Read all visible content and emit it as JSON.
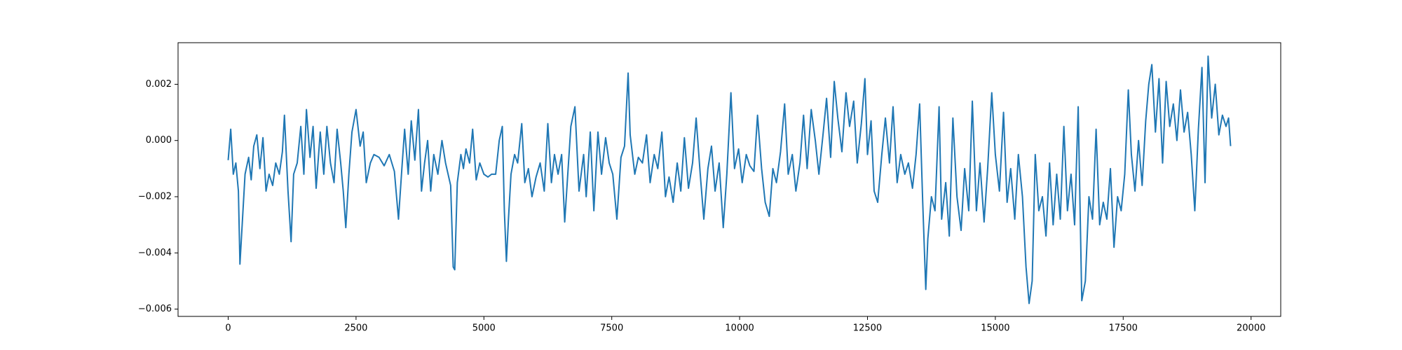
{
  "chart_data": {
    "type": "line",
    "x": [
      0,
      50,
      100,
      150,
      200,
      230,
      280,
      330,
      400,
      450,
      500,
      560,
      620,
      680,
      740,
      800,
      870,
      930,
      1000,
      1060,
      1100,
      1170,
      1230,
      1280,
      1350,
      1420,
      1480,
      1530,
      1600,
      1660,
      1720,
      1800,
      1870,
      1930,
      2000,
      2070,
      2130,
      2200,
      2250,
      2300,
      2360,
      2420,
      2500,
      2580,
      2640,
      2700,
      2780,
      2850,
      2950,
      3050,
      3150,
      3250,
      3330,
      3400,
      3450,
      3520,
      3580,
      3650,
      3720,
      3780,
      3840,
      3900,
      3960,
      4020,
      4100,
      4180,
      4250,
      4350,
      4400,
      4430,
      4480,
      4550,
      4600,
      4650,
      4720,
      4780,
      4850,
      4920,
      5000,
      5080,
      5150,
      5230,
      5300,
      5360,
      5400,
      5440,
      5480,
      5530,
      5600,
      5660,
      5740,
      5800,
      5870,
      5940,
      6020,
      6100,
      6180,
      6250,
      6320,
      6380,
      6450,
      6520,
      6580,
      6700,
      6780,
      6860,
      6950,
      7000,
      7080,
      7150,
      7230,
      7300,
      7380,
      7450,
      7520,
      7600,
      7680,
      7750,
      7820,
      7860,
      7950,
      8020,
      8100,
      8180,
      8250,
      8330,
      8400,
      8480,
      8550,
      8620,
      8700,
      8780,
      8850,
      8920,
      9000,
      9080,
      9150,
      9230,
      9300,
      9380,
      9450,
      9520,
      9600,
      9680,
      9750,
      9830,
      9900,
      9980,
      10050,
      10130,
      10200,
      10280,
      10350,
      10430,
      10500,
      10580,
      10650,
      10720,
      10800,
      10880,
      10950,
      11030,
      11100,
      11180,
      11250,
      11320,
      11400,
      11480,
      11550,
      11630,
      11700,
      11780,
      11850,
      11920,
      12000,
      12080,
      12150,
      12230,
      12300,
      12380,
      12450,
      12500,
      12570,
      12630,
      12700,
      12780,
      12850,
      12930,
      13000,
      13080,
      13150,
      13230,
      13300,
      13380,
      13450,
      13520,
      13580,
      13640,
      13680,
      13750,
      13820,
      13900,
      13950,
      14030,
      14100,
      14170,
      14250,
      14330,
      14400,
      14480,
      14550,
      14630,
      14700,
      14780,
      14850,
      14930,
      15000,
      15080,
      15160,
      15230,
      15300,
      15380,
      15450,
      15530,
      15600,
      15660,
      15720,
      15780,
      15850,
      15920,
      15990,
      16060,
      16130,
      16200,
      16270,
      16340,
      16410,
      16480,
      16550,
      16620,
      16690,
      16760,
      16830,
      16900,
      16970,
      17040,
      17110,
      17180,
      17250,
      17320,
      17390,
      17460,
      17530,
      17600,
      17660,
      17730,
      17800,
      17870,
      17940,
      18000,
      18060,
      18130,
      18200,
      18270,
      18340,
      18410,
      18480,
      18550,
      18620,
      18690,
      18760,
      18830,
      18900,
      18970,
      19040,
      19100,
      19160,
      19230,
      19300,
      19370,
      19440,
      19510,
      19560,
      19600
    ],
    "values": [
      -0.0007,
      0.0004,
      -0.0012,
      -0.0008,
      -0.0018,
      -0.0044,
      -0.0028,
      -0.0012,
      -0.0006,
      -0.0014,
      -0.0002,
      0.0002,
      -0.001,
      0.0001,
      -0.0018,
      -0.0012,
      -0.0016,
      -0.0008,
      -0.0012,
      -0.0004,
      0.0009,
      -0.0018,
      -0.0036,
      -0.0012,
      -0.0008,
      0.0005,
      -0.0012,
      0.0011,
      -0.0006,
      0.0005,
      -0.0017,
      0.0003,
      -0.0012,
      0.0005,
      -0.0008,
      -0.0015,
      0.0004,
      -0.0008,
      -0.0018,
      -0.0031,
      -0.0012,
      0.0003,
      0.0011,
      -0.0002,
      0.0003,
      -0.0015,
      -0.0008,
      -0.0005,
      -0.0006,
      -0.0009,
      -0.0005,
      -0.0011,
      -0.0028,
      -0.0009,
      0.0004,
      -0.0012,
      0.0007,
      -0.0007,
      0.0011,
      -0.0018,
      -0.0008,
      0.0,
      -0.0018,
      -0.0005,
      -0.0012,
      0.0,
      -0.0008,
      -0.0016,
      -0.0045,
      -0.0046,
      -0.0015,
      -0.0005,
      -0.001,
      -0.0003,
      -0.0008,
      0.0004,
      -0.0014,
      -0.0008,
      -0.0012,
      -0.0013,
      -0.0012,
      -0.0012,
      0.0,
      0.0005,
      -0.0025,
      -0.0043,
      -0.0028,
      -0.0012,
      -0.0005,
      -0.0008,
      0.0006,
      -0.0015,
      -0.001,
      -0.002,
      -0.0013,
      -0.0008,
      -0.0018,
      0.0006,
      -0.0015,
      -0.0005,
      -0.0012,
      -0.0005,
      -0.0029,
      0.0005,
      0.0012,
      -0.0018,
      -0.0005,
      -0.002,
      0.0003,
      -0.0025,
      0.0003,
      -0.0012,
      0.0001,
      -0.0008,
      -0.0012,
      -0.0028,
      -0.0006,
      -0.0002,
      0.0024,
      0.0002,
      -0.0012,
      -0.0006,
      -0.0008,
      0.0002,
      -0.0015,
      -0.0005,
      -0.001,
      0.0003,
      -0.002,
      -0.0013,
      -0.0022,
      -0.0008,
      -0.0018,
      0.0001,
      -0.0017,
      -0.0008,
      0.0008,
      -0.0012,
      -0.0028,
      -0.001,
      -0.0002,
      -0.0018,
      -0.0008,
      -0.0031,
      -0.0012,
      0.0017,
      -0.001,
      -0.0003,
      -0.0015,
      -0.0005,
      -0.0009,
      -0.0011,
      0.0009,
      -0.001,
      -0.0022,
      -0.0027,
      -0.001,
      -0.0015,
      -0.0004,
      0.0013,
      -0.0012,
      -0.0005,
      -0.0018,
      -0.0008,
      0.0009,
      -0.001,
      0.0011,
      0.0,
      -0.0012,
      0.0002,
      0.0015,
      -0.0006,
      0.0021,
      0.0008,
      -0.0004,
      0.0017,
      0.0005,
      0.0014,
      -0.0008,
      0.0006,
      0.0022,
      -0.0005,
      0.0007,
      -0.0018,
      -0.0022,
      -0.0005,
      0.0008,
      -0.0008,
      0.0012,
      -0.0015,
      -0.0005,
      -0.0012,
      -0.0008,
      -0.0017,
      -0.0005,
      0.0013,
      -0.0022,
      -0.0053,
      -0.0035,
      -0.002,
      -0.0025,
      0.0012,
      -0.0028,
      -0.0015,
      -0.0034,
      0.0008,
      -0.002,
      -0.0032,
      -0.001,
      -0.0025,
      0.0014,
      -0.0025,
      -0.0008,
      -0.0029,
      -0.001,
      0.0017,
      -0.0005,
      -0.0018,
      0.001,
      -0.0022,
      -0.001,
      -0.0028,
      -0.0005,
      -0.002,
      -0.0045,
      -0.0058,
      -0.005,
      -0.0005,
      -0.0025,
      -0.002,
      -0.0034,
      -0.0008,
      -0.003,
      -0.0012,
      -0.0028,
      0.0005,
      -0.0025,
      -0.0012,
      -0.003,
      0.0012,
      -0.0057,
      -0.005,
      -0.002,
      -0.0028,
      0.0004,
      -0.003,
      -0.0022,
      -0.0028,
      -0.001,
      -0.0038,
      -0.002,
      -0.0025,
      -0.0012,
      0.0018,
      -0.0005,
      -0.0018,
      0.0,
      -0.0016,
      0.0007,
      0.002,
      0.0027,
      0.0003,
      0.0022,
      -0.0008,
      0.0021,
      0.0005,
      0.0013,
      0.0,
      0.0018,
      0.0003,
      0.001,
      -0.0005,
      -0.0025,
      0.0004,
      0.0026,
      -0.0015,
      0.003,
      0.0008,
      0.002,
      0.0002,
      0.0009,
      0.0005,
      0.0008,
      -0.0002
    ],
    "color": "#1f77b4",
    "xlim": [
      -980,
      20580
    ],
    "xticks": [
      0,
      2500,
      5000,
      7500,
      10000,
      12500,
      15000,
      17500,
      20000
    ],
    "ylim": [
      -0.00626,
      0.00348
    ],
    "yticks": [
      {
        "value": -0.006,
        "label": "−0.006"
      },
      {
        "value": -0.004,
        "label": "−0.004"
      },
      {
        "value": -0.002,
        "label": "−0.002"
      },
      {
        "value": 0,
        "label": "0.000"
      },
      {
        "value": 0.002,
        "label": "0.002"
      }
    ],
    "grid": false
  }
}
